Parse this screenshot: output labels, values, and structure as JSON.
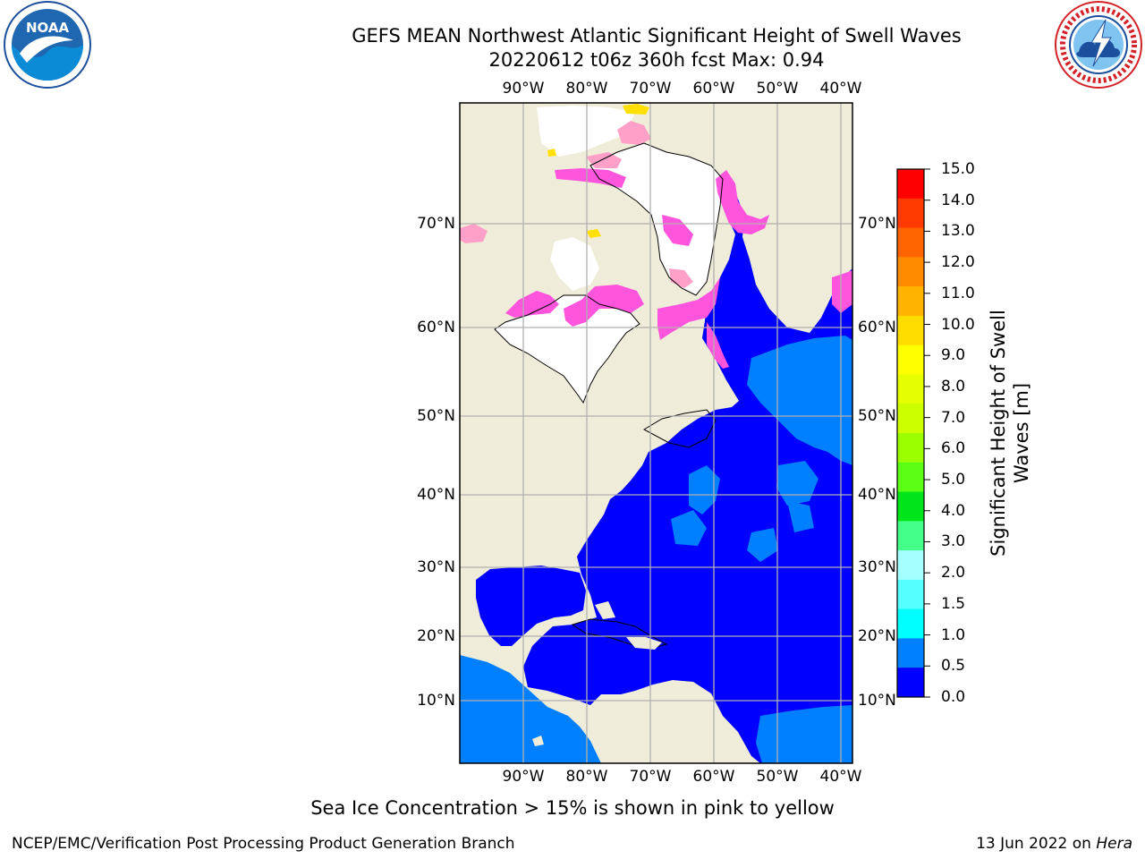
{
  "header": {
    "title": "GEFS MEAN Northwest Atlantic Significant Height of Swell Waves",
    "subtitle": "20220612 t06z 360h fcst   Max: 0.94"
  },
  "logos": {
    "left": "noaa-logo",
    "right": "nws-logo"
  },
  "map": {
    "lon_ticks": [
      "90°W",
      "80°W",
      "70°W",
      "60°W",
      "50°W",
      "40°W"
    ],
    "lat_ticks": [
      "70°N",
      "60°N",
      "50°N",
      "40°N",
      "30°N",
      "20°N",
      "10°N"
    ],
    "colors": {
      "land": "#efedd9",
      "ocean_low": "#0000ff",
      "ocean_mid": "#007fff",
      "ice": "#ff55dd",
      "ice_edge": "#ffa0c8",
      "ice_yellow": "#ffe000",
      "ice_white": "#ffffff",
      "grid": "#b0b0b0"
    }
  },
  "colorbar": {
    "label": "Significant Height of Swell Waves [m]",
    "ticks": [
      "15.0",
      "14.0",
      "13.0",
      "12.0",
      "11.0",
      "10.0",
      "9.0",
      "8.0",
      "7.0",
      "6.0",
      "5.0",
      "4.0",
      "3.0",
      "2.0",
      "1.5",
      "1.0",
      "0.5",
      "0.0"
    ],
    "colors": [
      "#ff0000",
      "#ff3a00",
      "#ff6400",
      "#ff8c00",
      "#ffb400",
      "#ffdc00",
      "#ffff00",
      "#e6ff00",
      "#ccff00",
      "#9bff00",
      "#5bff15",
      "#00e51a",
      "#44ff88",
      "#a6ffff",
      "#55ffff",
      "#00ffff",
      "#007fff",
      "#0000ff"
    ]
  },
  "note": "Sea Ice Concentration > 15% is shown in pink to yellow",
  "footer": {
    "left": "NCEP/EMC/Verification Post Processing Product Generation Branch",
    "right_prefix": "13 Jun 2022 on ",
    "right_host": "Hera"
  }
}
